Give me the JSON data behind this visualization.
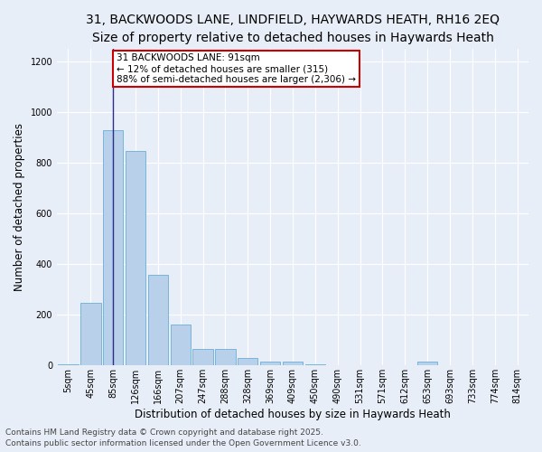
{
  "title_line1": "31, BACKWOODS LANE, LINDFIELD, HAYWARDS HEATH, RH16 2EQ",
  "title_line2": "Size of property relative to detached houses in Haywards Heath",
  "xlabel": "Distribution of detached houses by size in Haywards Heath",
  "ylabel": "Number of detached properties",
  "categories": [
    "5sqm",
    "45sqm",
    "85sqm",
    "126sqm",
    "166sqm",
    "207sqm",
    "247sqm",
    "288sqm",
    "328sqm",
    "369sqm",
    "409sqm",
    "450sqm",
    "490sqm",
    "531sqm",
    "571sqm",
    "612sqm",
    "653sqm",
    "693sqm",
    "733sqm",
    "774sqm",
    "814sqm"
  ],
  "values": [
    5,
    248,
    930,
    848,
    358,
    160,
    65,
    65,
    30,
    15,
    15,
    5,
    0,
    0,
    0,
    0,
    14,
    0,
    0,
    0,
    0
  ],
  "bar_color": "#b8d0ea",
  "bar_edge_color": "#6aaed6",
  "vline_x": 2,
  "vline_color": "#2c2c8c",
  "ylim": [
    0,
    1250
  ],
  "yticks": [
    0,
    200,
    400,
    600,
    800,
    1000,
    1200
  ],
  "annotation_text": "31 BACKWOODS LANE: 91sqm\n← 12% of detached houses are smaller (315)\n88% of semi-detached houses are larger (2,306) →",
  "annotation_box_color": "#ffffff",
  "annotation_box_edge": "#cc0000",
  "footer_line1": "Contains HM Land Registry data © Crown copyright and database right 2025.",
  "footer_line2": "Contains public sector information licensed under the Open Government Licence v3.0.",
  "background_color": "#e8eef8",
  "plot_bg_color": "#e8eef8",
  "grid_color": "#ffffff",
  "title_fontsize": 10,
  "subtitle_fontsize": 9,
  "axis_label_fontsize": 8.5,
  "tick_fontsize": 7,
  "footer_fontsize": 6.5,
  "annotation_fontsize": 7.5
}
